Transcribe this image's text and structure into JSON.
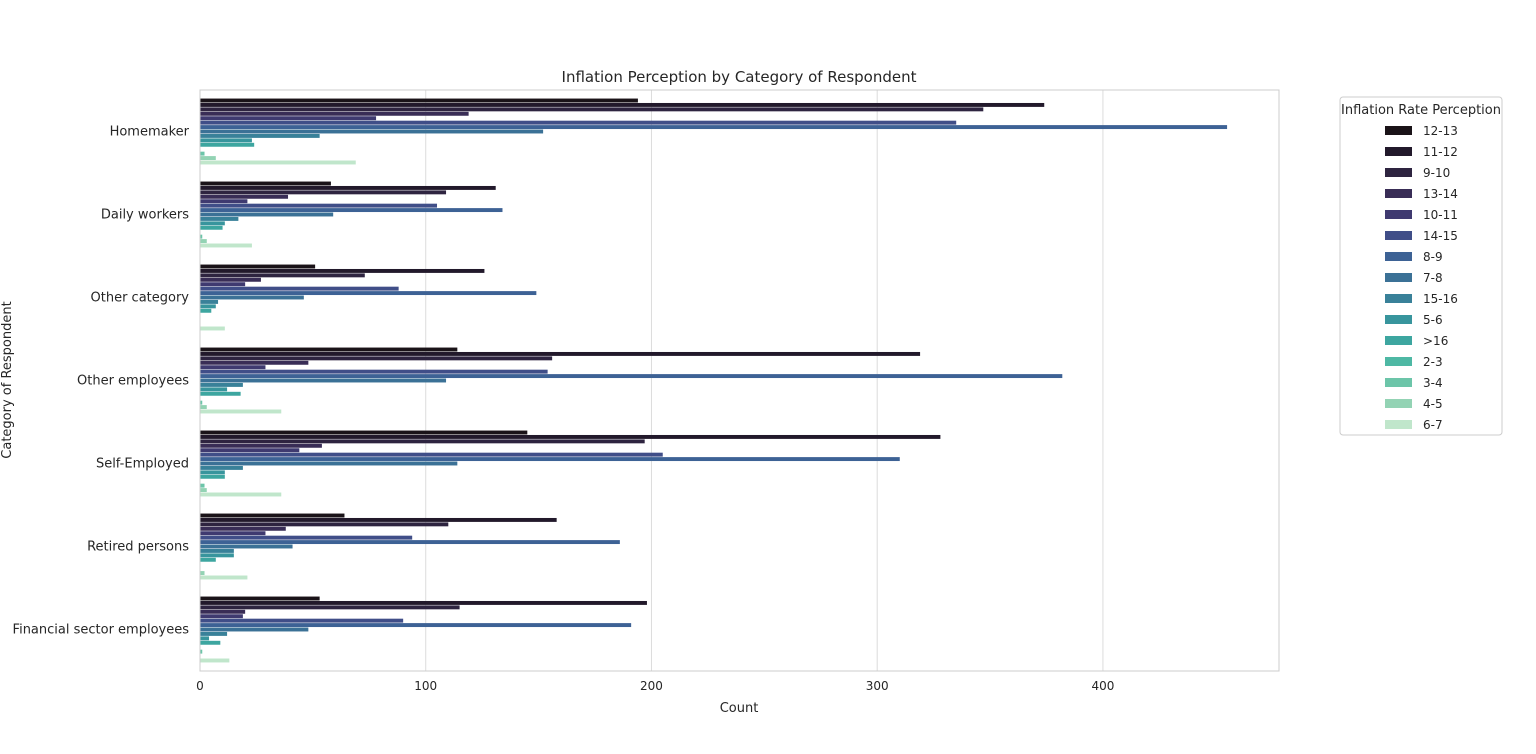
{
  "chart_data": {
    "type": "bar",
    "orientation": "horizontal",
    "title": "Inflation Perception by Category of Respondent",
    "xlabel": "Count",
    "ylabel": "Category of Respondent",
    "xlim": [
      0,
      478
    ],
    "xticks": [
      0,
      100,
      200,
      300,
      400
    ],
    "grid": true,
    "legend": {
      "title": "Inflation Rate Perception",
      "placement": "outside-right"
    },
    "categories": [
      "Homemaker",
      "Daily workers",
      "Other category",
      "Other employees",
      "Self-Employed",
      "Retired persons",
      "Financial sector employees"
    ],
    "series": [
      {
        "name": "12-13",
        "color": "#1a1318",
        "values": [
          194,
          58,
          51,
          114,
          145,
          64,
          53
        ]
      },
      {
        "name": "11-12",
        "color": "#22192b",
        "values": [
          374,
          131,
          126,
          319,
          328,
          158,
          198
        ]
      },
      {
        "name": "9-10",
        "color": "#2e2440",
        "values": [
          347,
          109,
          73,
          156,
          197,
          110,
          115
        ]
      },
      {
        "name": "13-14",
        "color": "#392d56",
        "values": [
          119,
          39,
          27,
          48,
          54,
          38,
          20
        ]
      },
      {
        "name": "10-11",
        "color": "#3f3a70",
        "values": [
          78,
          21,
          20,
          29,
          44,
          29,
          19
        ]
      },
      {
        "name": "14-15",
        "color": "#404e88",
        "values": [
          335,
          105,
          88,
          154,
          205,
          94,
          90
        ]
      },
      {
        "name": "8-9",
        "color": "#3d6295",
        "values": [
          455,
          134,
          149,
          382,
          310,
          186,
          191
        ]
      },
      {
        "name": "7-8",
        "color": "#3b7196",
        "values": [
          152,
          59,
          46,
          109,
          114,
          41,
          48
        ]
      },
      {
        "name": "15-16",
        "color": "#398199",
        "values": [
          53,
          17,
          8,
          19,
          19,
          15,
          12
        ]
      },
      {
        "name": "5-6",
        "color": "#38959d",
        "values": [
          23,
          11,
          7,
          12,
          11,
          15,
          4
        ]
      },
      {
        "name": ">16",
        "color": "#3da6a0",
        "values": [
          24,
          10,
          5,
          18,
          11,
          7,
          9
        ]
      },
      {
        "name": "2-3",
        "color": "#4eb8a4",
        "values": [
          0,
          0,
          0,
          0,
          0,
          0,
          0
        ]
      },
      {
        "name": "3-4",
        "color": "#6cc5a9",
        "values": [
          2,
          1,
          0,
          1,
          2,
          0,
          1
        ]
      },
      {
        "name": "4-5",
        "color": "#93d3b4",
        "values": [
          7,
          3,
          0,
          3,
          3,
          2,
          0
        ]
      },
      {
        "name": "6-7",
        "color": "#c0e6cb",
        "values": [
          69,
          23,
          11,
          36,
          36,
          21,
          13
        ]
      }
    ]
  }
}
